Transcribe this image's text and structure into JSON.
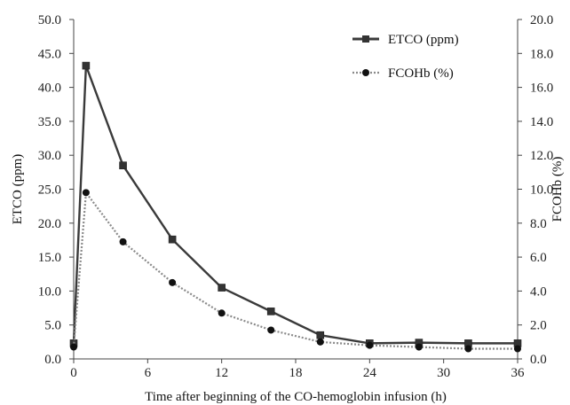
{
  "chart_data": {
    "type": "line",
    "x": [
      0,
      1,
      4,
      8,
      12,
      16,
      20,
      24,
      28,
      32,
      36
    ],
    "x_ticks": [
      "0",
      "6",
      "12",
      "18",
      "24",
      "30",
      "36"
    ],
    "xlim": [
      0,
      36
    ],
    "xlabel": "Time after beginning of the CO-hemoglobin infusion (h)",
    "ylabel_left": "ETCO (ppm)",
    "ylabel_right": "FCOHb (%)",
    "ylim_left": [
      0,
      50
    ],
    "ylim_right": [
      0,
      20
    ],
    "y_ticks_left": [
      "0.0",
      "5.0",
      "10.0",
      "15.0",
      "20.0",
      "25.0",
      "30.0",
      "35.0",
      "40.0",
      "45.0",
      "50.0"
    ],
    "y_ticks_right": [
      "0.0",
      "2.0",
      "4.0",
      "6.0",
      "8.0",
      "10.0",
      "12.0",
      "14.0",
      "16.0",
      "18.0",
      "20.0"
    ],
    "grid": false,
    "legend_position": "top-right",
    "series": [
      {
        "name": "ETCO (ppm)",
        "axis": "left",
        "style": "solid",
        "marker": "square",
        "color": "#3a3a3a",
        "values": [
          2.3,
          43.2,
          28.5,
          17.6,
          10.5,
          7.0,
          3.5,
          2.3,
          2.4,
          2.3,
          2.3
        ]
      },
      {
        "name": "FCOHb (%)",
        "axis": "right",
        "style": "dotted",
        "marker": "circle",
        "color": "#222222",
        "values": [
          0.7,
          9.8,
          6.9,
          4.5,
          2.7,
          1.7,
          1.0,
          0.8,
          0.7,
          0.6,
          0.6
        ]
      }
    ]
  }
}
